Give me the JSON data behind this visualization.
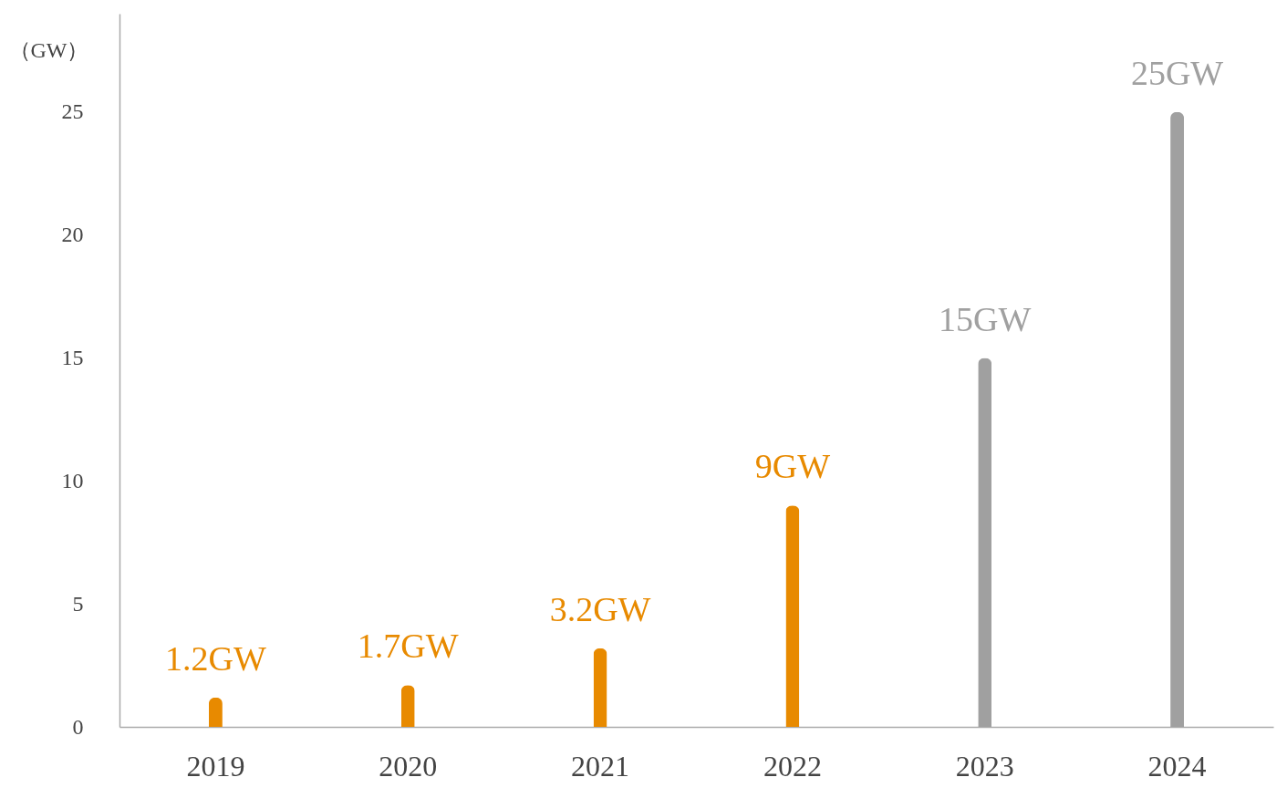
{
  "chart_data": {
    "type": "bar",
    "ylabel": "（GW）",
    "categories": [
      "2019",
      "2020",
      "2021",
      "2022",
      "2023",
      "2024"
    ],
    "values": [
      1.2,
      1.7,
      3.2,
      9,
      15,
      25
    ],
    "colors": [
      "#e88a00",
      "#e88a00",
      "#e88a00",
      "#e88a00",
      "#a0a0a0",
      "#a0a0a0"
    ],
    "value_labels": [
      "1.2GW",
      "1.7GW",
      "3.2GW",
      "9GW",
      "15GW",
      "25GW"
    ],
    "ylim": [
      0,
      29
    ],
    "yticks": [
      0,
      5,
      10,
      15,
      20,
      25
    ],
    "grid": false
  }
}
